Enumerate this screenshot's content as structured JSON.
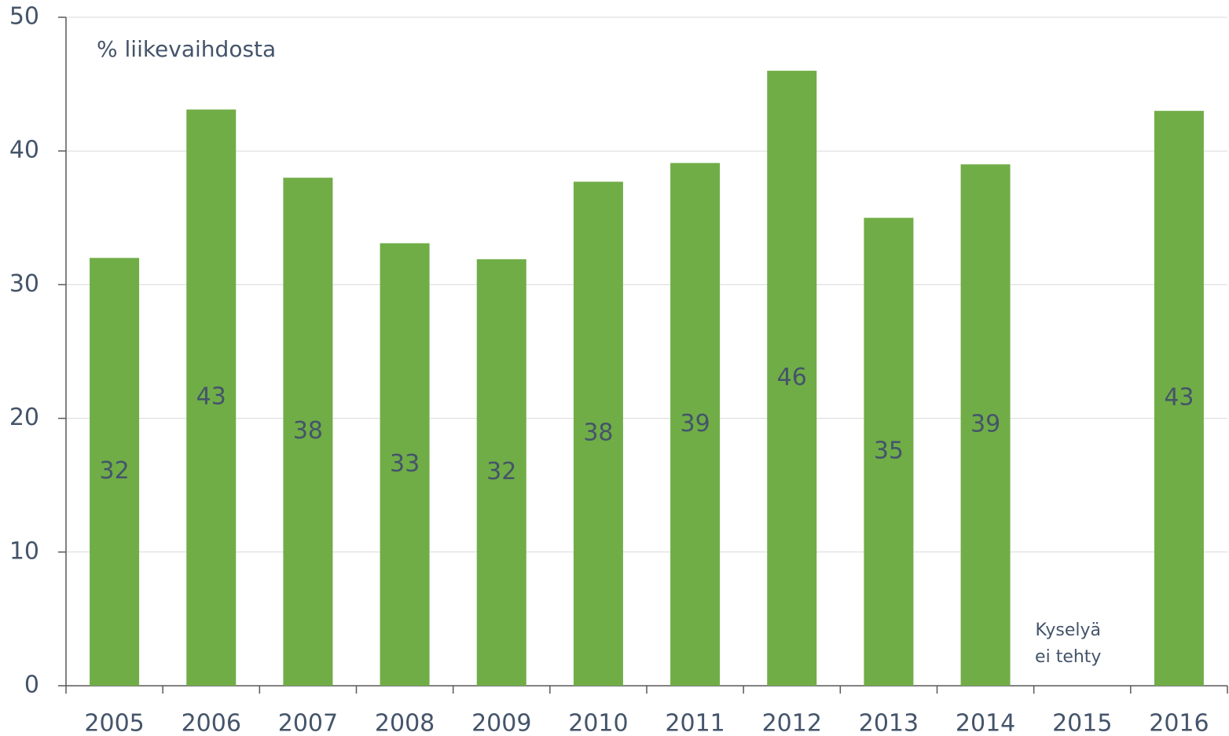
{
  "chart_data": {
    "type": "bar",
    "subtitle": "% liikevaihdosta",
    "categories": [
      "2005",
      "2006",
      "2007",
      "2008",
      "2009",
      "2010",
      "2011",
      "2012",
      "2013",
      "2014",
      "2015",
      "2016"
    ],
    "values": [
      32.0,
      43.1,
      38.0,
      33.1,
      31.9,
      37.7,
      39.1,
      46.0,
      35.0,
      39.0,
      null,
      43.0
    ],
    "value_labels": [
      "32",
      "43",
      "38",
      "33",
      "32",
      "38",
      "39",
      "46",
      "35",
      "39",
      null,
      "43"
    ],
    "color": "#70ad47",
    "ylim": [
      0,
      50
    ],
    "yticks": [
      0,
      10,
      20,
      30,
      40,
      50
    ],
    "grid": true,
    "annotation": {
      "category": 10,
      "lines": [
        "Kyselyä",
        "ei tehty"
      ]
    }
  }
}
